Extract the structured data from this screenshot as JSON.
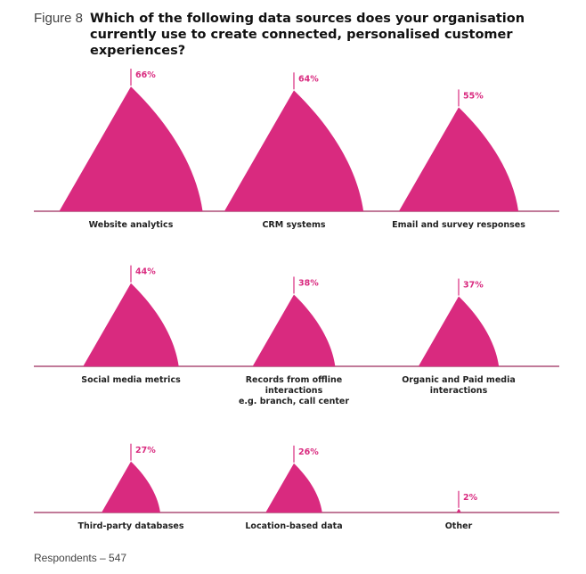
{
  "figure_label": "Figure 8",
  "chart_data": {
    "type": "bar",
    "title": "Which of the following data sources does your organisation currently use to create connected, personalised customer experiences?",
    "categories": [
      [
        "Website analytics"
      ],
      [
        "CRM systems"
      ],
      [
        "Email and survey responses"
      ],
      [
        "Social media metrics"
      ],
      [
        "Records from offline",
        "interactions",
        "e.g. branch, call center"
      ],
      [
        "Organic and Paid media",
        "interactions"
      ],
      [
        "Third-party databases"
      ],
      [
        "Location-based data"
      ],
      [
        "Other"
      ]
    ],
    "values": [
      66,
      64,
      55,
      44,
      38,
      37,
      27,
      26,
      2
    ],
    "value_labels": [
      "66%",
      "64%",
      "55%",
      "44%",
      "38%",
      "37%",
      "27%",
      "26%",
      "2%"
    ],
    "unit": "%",
    "color": "#d92a7f",
    "baseline_color": "#9c2a5c"
  },
  "footnote": "Respondents – 547"
}
